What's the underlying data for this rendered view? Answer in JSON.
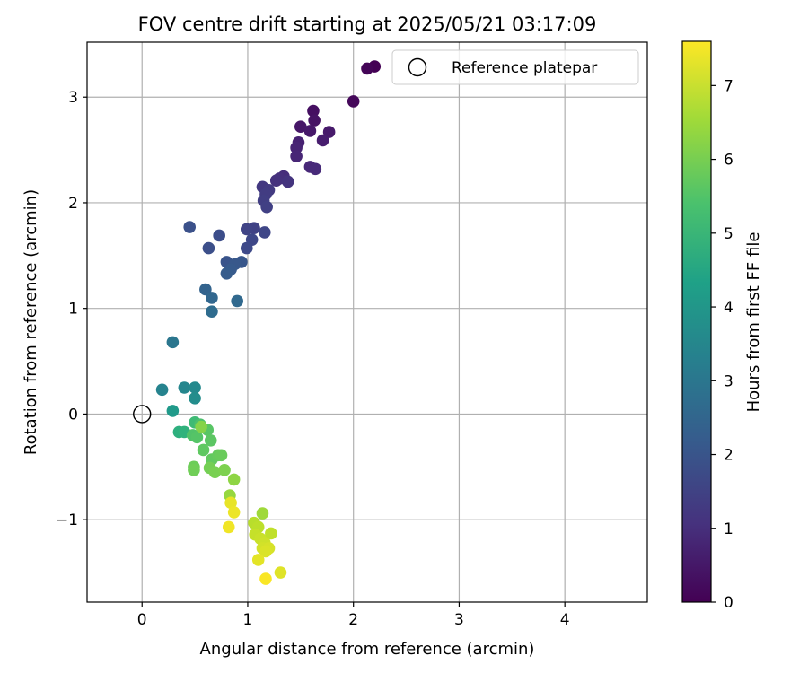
{
  "chart_data": {
    "type": "scatter",
    "title": "FOV centre drift starting at 2025/05/21 03:17:09",
    "xlabel": "Angular distance from reference (arcmin)",
    "ylabel": "Rotation from reference (arcmin)",
    "xlim": [
      -0.52,
      4.78
    ],
    "ylim": [
      -1.78,
      3.52
    ],
    "xticks": [
      0,
      1,
      2,
      3,
      4
    ],
    "yticks": [
      -1,
      0,
      1,
      2,
      3
    ],
    "xtick_labels": [
      "0",
      "1",
      "2",
      "3",
      "4"
    ],
    "ytick_labels": [
      "−1",
      "0",
      "1",
      "2",
      "3"
    ],
    "grid": true,
    "legend": {
      "placement": "top-right",
      "entries": [
        "Reference platepar"
      ]
    },
    "reference_point": {
      "x": 0,
      "y": 0,
      "label": "Reference platepar"
    },
    "colorbar": {
      "label": "Hours from first FF file",
      "min": 0,
      "max": 7.6,
      "ticks": [
        0,
        1,
        2,
        3,
        4,
        5,
        6,
        7
      ],
      "colormap": "viridis"
    },
    "points": [
      {
        "x": 2.2,
        "y": 3.29,
        "h": 0.0
      },
      {
        "x": 2.13,
        "y": 3.27,
        "h": 0.08
      },
      {
        "x": 2.0,
        "y": 2.96,
        "h": 0.15
      },
      {
        "x": 1.62,
        "y": 2.87,
        "h": 0.3
      },
      {
        "x": 1.63,
        "y": 2.78,
        "h": 0.38
      },
      {
        "x": 1.5,
        "y": 2.72,
        "h": 0.45
      },
      {
        "x": 1.59,
        "y": 2.68,
        "h": 0.5
      },
      {
        "x": 1.77,
        "y": 2.67,
        "h": 0.55
      },
      {
        "x": 1.71,
        "y": 2.59,
        "h": 0.6
      },
      {
        "x": 1.48,
        "y": 2.57,
        "h": 0.7
      },
      {
        "x": 1.46,
        "y": 2.52,
        "h": 0.75
      },
      {
        "x": 1.46,
        "y": 2.44,
        "h": 0.8
      },
      {
        "x": 1.59,
        "y": 2.34,
        "h": 0.85
      },
      {
        "x": 1.64,
        "y": 2.32,
        "h": 0.9
      },
      {
        "x": 1.34,
        "y": 2.25,
        "h": 1.0
      },
      {
        "x": 1.3,
        "y": 2.23,
        "h": 1.05
      },
      {
        "x": 1.27,
        "y": 2.21,
        "h": 1.1
      },
      {
        "x": 1.38,
        "y": 2.2,
        "h": 1.15
      },
      {
        "x": 1.14,
        "y": 2.15,
        "h": 1.25
      },
      {
        "x": 1.2,
        "y": 2.12,
        "h": 1.3
      },
      {
        "x": 1.17,
        "y": 2.08,
        "h": 1.35
      },
      {
        "x": 1.15,
        "y": 2.02,
        "h": 1.4
      },
      {
        "x": 1.18,
        "y": 1.96,
        "h": 1.45
      },
      {
        "x": 1.06,
        "y": 1.76,
        "h": 1.5
      },
      {
        "x": 0.99,
        "y": 1.75,
        "h": 1.55
      },
      {
        "x": 1.16,
        "y": 1.72,
        "h": 1.6
      },
      {
        "x": 1.04,
        "y": 1.65,
        "h": 1.65
      },
      {
        "x": 0.99,
        "y": 1.57,
        "h": 1.7
      },
      {
        "x": 0.73,
        "y": 1.69,
        "h": 1.8
      },
      {
        "x": 0.63,
        "y": 1.57,
        "h": 1.85
      },
      {
        "x": 0.45,
        "y": 1.77,
        "h": 1.9
      },
      {
        "x": 0.8,
        "y": 1.44,
        "h": 2.0
      },
      {
        "x": 0.94,
        "y": 1.44,
        "h": 2.05
      },
      {
        "x": 0.88,
        "y": 1.42,
        "h": 2.1
      },
      {
        "x": 0.84,
        "y": 1.37,
        "h": 2.15
      },
      {
        "x": 0.8,
        "y": 1.33,
        "h": 2.2
      },
      {
        "x": 0.6,
        "y": 1.18,
        "h": 2.4
      },
      {
        "x": 0.66,
        "y": 1.1,
        "h": 2.5
      },
      {
        "x": 0.9,
        "y": 1.07,
        "h": 2.55
      },
      {
        "x": 0.66,
        "y": 0.97,
        "h": 2.65
      },
      {
        "x": 0.29,
        "y": 0.68,
        "h": 3.0
      },
      {
        "x": 0.19,
        "y": 0.23,
        "h": 3.4
      },
      {
        "x": 0.4,
        "y": 0.25,
        "h": 3.5
      },
      {
        "x": 0.5,
        "y": 0.25,
        "h": 3.6
      },
      {
        "x": 0.5,
        "y": 0.15,
        "h": 3.7
      },
      {
        "x": 0.29,
        "y": 0.03,
        "h": 4.1
      },
      {
        "x": 0.35,
        "y": -0.17,
        "h": 4.8
      },
      {
        "x": 0.4,
        "y": -0.17,
        "h": 4.9
      },
      {
        "x": 0.5,
        "y": -0.08,
        "h": 5.2
      },
      {
        "x": 0.55,
        "y": -0.1,
        "h": 5.4
      },
      {
        "x": 0.48,
        "y": -0.2,
        "h": 5.5
      },
      {
        "x": 0.52,
        "y": -0.22,
        "h": 5.55
      },
      {
        "x": 0.62,
        "y": -0.15,
        "h": 5.6
      },
      {
        "x": 0.65,
        "y": -0.25,
        "h": 5.65
      },
      {
        "x": 0.58,
        "y": -0.34,
        "h": 5.7
      },
      {
        "x": 0.66,
        "y": -0.43,
        "h": 5.75
      },
      {
        "x": 0.72,
        "y": -0.39,
        "h": 5.8
      },
      {
        "x": 0.75,
        "y": -0.39,
        "h": 5.85
      },
      {
        "x": 0.49,
        "y": -0.5,
        "h": 5.9
      },
      {
        "x": 0.49,
        "y": -0.53,
        "h": 5.95
      },
      {
        "x": 0.64,
        "y": -0.51,
        "h": 6.0
      },
      {
        "x": 0.69,
        "y": -0.55,
        "h": 6.05
      },
      {
        "x": 0.78,
        "y": -0.53,
        "h": 6.1
      },
      {
        "x": 0.56,
        "y": -0.12,
        "h": 6.2
      },
      {
        "x": 0.87,
        "y": -0.62,
        "h": 6.3
      },
      {
        "x": 0.83,
        "y": -0.77,
        "h": 6.4
      },
      {
        "x": 1.14,
        "y": -0.94,
        "h": 6.5
      },
      {
        "x": 1.06,
        "y": -1.03,
        "h": 6.8
      },
      {
        "x": 1.1,
        "y": -1.07,
        "h": 6.85
      },
      {
        "x": 1.22,
        "y": -1.13,
        "h": 6.9
      },
      {
        "x": 1.07,
        "y": -1.14,
        "h": 6.95
      },
      {
        "x": 1.12,
        "y": -1.18,
        "h": 7.0
      },
      {
        "x": 1.16,
        "y": -1.22,
        "h": 7.05
      },
      {
        "x": 1.14,
        "y": -1.27,
        "h": 7.1
      },
      {
        "x": 1.2,
        "y": -1.27,
        "h": 7.15
      },
      {
        "x": 1.17,
        "y": -1.3,
        "h": 7.2
      },
      {
        "x": 1.31,
        "y": -1.5,
        "h": 7.25
      },
      {
        "x": 1.1,
        "y": -1.38,
        "h": 7.3
      },
      {
        "x": 0.84,
        "y": -0.84,
        "h": 7.35
      },
      {
        "x": 0.87,
        "y": -0.93,
        "h": 7.4
      },
      {
        "x": 0.82,
        "y": -1.07,
        "h": 7.45
      },
      {
        "x": 1.17,
        "y": -1.56,
        "h": 7.55
      }
    ]
  }
}
